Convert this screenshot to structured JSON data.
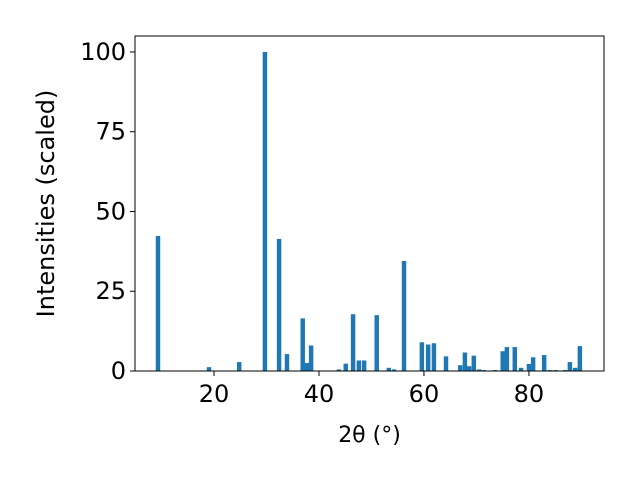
{
  "chart_data": {
    "type": "bar",
    "xlabel": "2θ (°)",
    "ylabel": "Intensities (scaled)",
    "color": "#1f77b4",
    "x": [
      9.33,
      19.05,
      24.8,
      29.7,
      32.4,
      33.9,
      36.9,
      37.7,
      38.5,
      43.8,
      45.1,
      46.5,
      47.6,
      48.6,
      51.0,
      53.3,
      54.3,
      56.2,
      59.6,
      60.8,
      61.9,
      64.2,
      66.9,
      67.8,
      68.6,
      69.5,
      70.5,
      71.4,
      73.5,
      75.0,
      75.8,
      77.3,
      78.5,
      80.0,
      80.8,
      82.9,
      84.0,
      85.1,
      86.9,
      87.8,
      88.8,
      89.7
    ],
    "values": [
      42.3,
      1.2,
      2.8,
      100,
      41.4,
      5.3,
      16.5,
      2.5,
      8,
      0.5,
      2.3,
      17.8,
      3.3,
      3.3,
      17.5,
      1,
      0.5,
      34.5,
      9,
      8.3,
      8.7,
      4.6,
      1.8,
      5.8,
      1.5,
      4.8,
      0.5,
      0.3,
      0.3,
      6.2,
      7.5,
      7.5,
      1,
      2.2,
      4.3,
      5,
      0.3,
      0.3,
      0.3,
      2.8,
      1,
      7.8
    ],
    "xlim": [
      4.95,
      94.3
    ],
    "xticks": [
      20,
      40,
      60,
      80
    ],
    "ylim": [
      0,
      105
    ],
    "yticks": [
      0,
      25,
      50,
      75,
      100
    ]
  }
}
